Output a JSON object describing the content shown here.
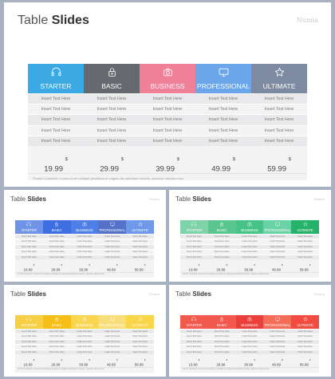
{
  "brand": "Numia",
  "title_light": "Table",
  "title_bold": "Slides",
  "cell_text": "Insert Text Here",
  "note": "Fermin Condimint: Cursus in et nostique penatibus et magnis dis parturient montes, nascetur ridiculus mus.",
  "plans": [
    {
      "name": "STARTER",
      "icon": "headphones-icon",
      "price": "19.99",
      "currency": "$"
    },
    {
      "name": "BASIC",
      "icon": "lock-icon",
      "price": "29.99",
      "currency": "$"
    },
    {
      "name": "BUSINESS",
      "icon": "camera-icon",
      "price": "39.99",
      "currency": "$"
    },
    {
      "name": "PROFESSIONAL",
      "icon": "monitor-icon",
      "price": "49.99",
      "currency": "$"
    },
    {
      "name": "ULTIMATE",
      "icon": "star-icon",
      "price": "59.99",
      "currency": "$"
    }
  ],
  "themes": {
    "multicolor": [
      "#3aa9e4",
      "#666a6e",
      "#f07f98",
      "#6aa6e9",
      "#7e8aa1"
    ],
    "blue": [
      "#6f93e6",
      "#3f6ee0",
      "#4d7fe6",
      "#5572c9",
      "#7098ea"
    ],
    "green": [
      "#7ed4a8",
      "#59c58f",
      "#46c386",
      "#6ad3a6",
      "#25b36a"
    ],
    "yellow": [
      "#f7cf44",
      "#f6be18",
      "#f9d550",
      "#f8de78",
      "#f9d54a"
    ],
    "red": [
      "#f35a4e",
      "#f2584b",
      "#ea3f3b",
      "#f36d58",
      "#f24b3f"
    ]
  }
}
